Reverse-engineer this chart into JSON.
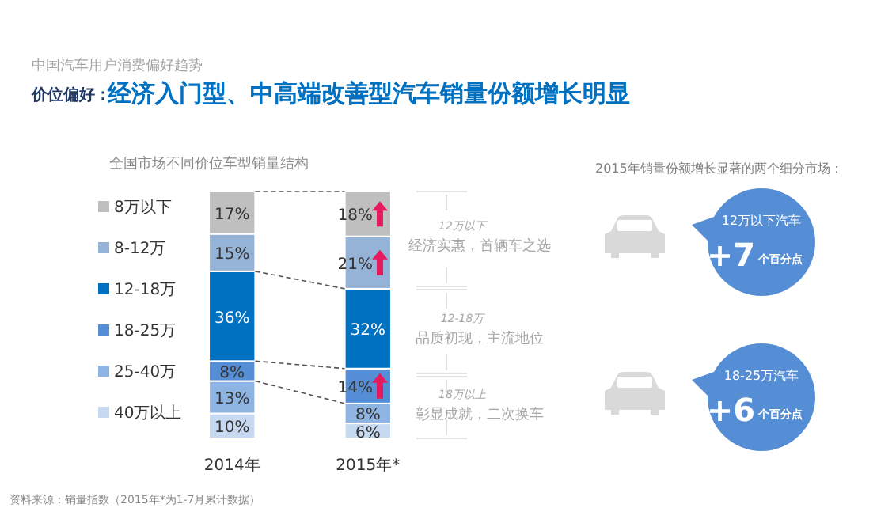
{
  "chart_data": {
    "type": "bar",
    "stacked": true,
    "title": "经济入门型、中高端改善型汽车销量份额增长明显",
    "subtitle": "全国市场不同价位车型销量结构",
    "categories": [
      "2014年",
      "2015年*"
    ],
    "legend": "left",
    "series": [
      {
        "name": "40万以上",
        "color": "#c6d9f1",
        "values": [
          10,
          6
        ],
        "value_labels": [
          "10%",
          "6%"
        ]
      },
      {
        "name": "25-40万",
        "color": "#8eb4e3",
        "values": [
          13,
          8
        ],
        "value_labels": [
          "13%",
          "8%"
        ]
      },
      {
        "name": "18-25万",
        "color": "#558ed5",
        "values": [
          8,
          14
        ],
        "value_labels": [
          "8%",
          "14%"
        ]
      },
      {
        "name": "12-18万",
        "color": "#0070c0",
        "values": [
          36,
          32
        ],
        "value_labels": [
          "36%",
          "32%"
        ]
      },
      {
        "name": "8-12万",
        "color": "#95b3d7",
        "values": [
          15,
          21
        ],
        "value_labels": [
          "15%",
          "21%"
        ]
      },
      {
        "name": "8万以下",
        "color": "#bfbfbf",
        "values": [
          17,
          18
        ],
        "value_labels": [
          "17%",
          "18%"
        ]
      }
    ],
    "annotations": [
      "中国汽车用户消费偏好趋势",
      "价位偏好：",
      "12万以下",
      "经济实惠，首辆车之选",
      "12-18万",
      "品质初现，主流地位",
      "18万以上",
      "彰显成就，二次换车",
      "2015年销量份额增长显著的两个细分市场：",
      "12万以下汽车",
      "+7",
      "个百分点",
      "18-25万汽车",
      "+6",
      "个百分点",
      "资料来源：销量指数（2015年*为1-7月累计数据）"
    ]
  }
}
